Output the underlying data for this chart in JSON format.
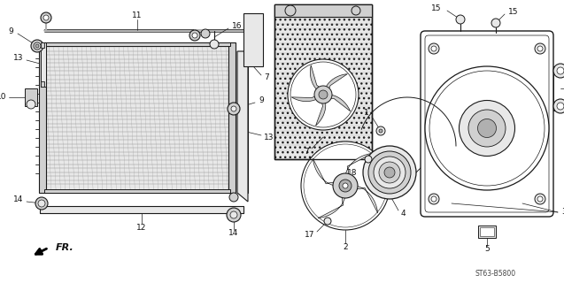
{
  "bg_color": "#ffffff",
  "diagram_code": "ST63-B5800",
  "lc": "#1a1a1a",
  "gray1": "#d0d0d0",
  "gray2": "#e8e8e8",
  "gray3": "#b0b0b0",
  "gray4": "#f0f0f0"
}
